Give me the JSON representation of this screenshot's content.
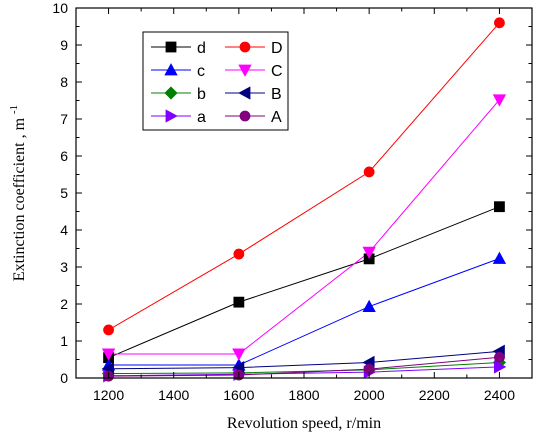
{
  "chart_data": {
    "type": "line",
    "x": [
      1200,
      1600,
      2000,
      2400
    ],
    "xlabel": "Revolution speed, r/min",
    "ylabel": "Extinction coefficient , m",
    "ylabel_sup": "-1",
    "xlim": [
      1100,
      2500
    ],
    "ylim": [
      0,
      10
    ],
    "xticks": [
      1200,
      1400,
      1600,
      1800,
      2000,
      2200,
      2400
    ],
    "yticks": [
      0,
      1,
      2,
      3,
      4,
      5,
      6,
      7,
      8,
      9,
      10
    ],
    "grid": false,
    "legend_position": "top-left",
    "series": [
      {
        "name": "d",
        "values": [
          0.55,
          2.05,
          3.22,
          4.63
        ],
        "color": "#000000",
        "marker": "square"
      },
      {
        "name": "D",
        "values": [
          1.3,
          3.35,
          5.57,
          9.6
        ],
        "color": "#ff0000",
        "marker": "circle"
      },
      {
        "name": "c",
        "values": [
          0.35,
          0.35,
          1.93,
          3.23
        ],
        "color": "#0000ff",
        "marker": "triangle-up"
      },
      {
        "name": "C",
        "values": [
          0.65,
          0.65,
          3.4,
          7.52
        ],
        "color": "#ff00ff",
        "marker": "triangle-down"
      },
      {
        "name": "b",
        "values": [
          0.12,
          0.14,
          0.22,
          0.42
        ],
        "color": "#008000",
        "marker": "diamond"
      },
      {
        "name": "B",
        "values": [
          0.25,
          0.28,
          0.42,
          0.72
        ],
        "color": "#000080",
        "marker": "triangle-left"
      },
      {
        "name": "a",
        "values": [
          0.06,
          0.1,
          0.16,
          0.3
        ],
        "color": "#8000ff",
        "marker": "triangle-right"
      },
      {
        "name": "A",
        "values": [
          0.05,
          0.08,
          0.24,
          0.56
        ],
        "color": "#800080",
        "marker": "circle"
      }
    ]
  }
}
